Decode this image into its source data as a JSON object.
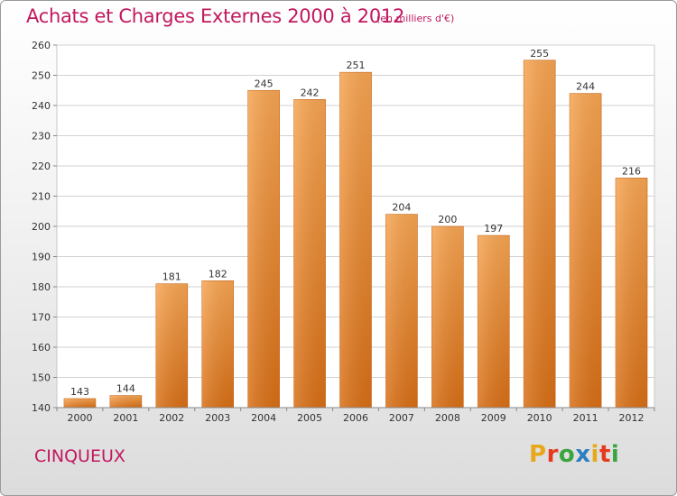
{
  "header": {
    "title": "Achats et Charges Externes 2000 à 2012",
    "unit": "(en milliers d'€)"
  },
  "footer": {
    "commune": "CINQUEUX",
    "logo_text": "Proxiti",
    "logo_colors": [
      "#e8a81c",
      "#e63a1f",
      "#3aa540",
      "#2d7fc0",
      "#e8a81c",
      "#e63a1f",
      "#3aa540"
    ]
  },
  "chart_data": {
    "type": "bar",
    "title": "Achats et Charges Externes 2000 à 2012",
    "subtitle": "(en milliers d'€)",
    "categories": [
      "2000",
      "2001",
      "2002",
      "2003",
      "2004",
      "2005",
      "2006",
      "2007",
      "2008",
      "2009",
      "2010",
      "2011",
      "2012"
    ],
    "values": [
      143,
      144,
      181,
      182,
      245,
      242,
      251,
      204,
      200,
      197,
      255,
      244,
      216
    ],
    "ylim": [
      140,
      260
    ],
    "yticks": [
      140,
      150,
      160,
      170,
      180,
      190,
      200,
      210,
      220,
      230,
      240,
      250,
      260
    ],
    "xlabel": "",
    "ylabel": "",
    "grid": true,
    "bar_color": "#f2913c"
  }
}
